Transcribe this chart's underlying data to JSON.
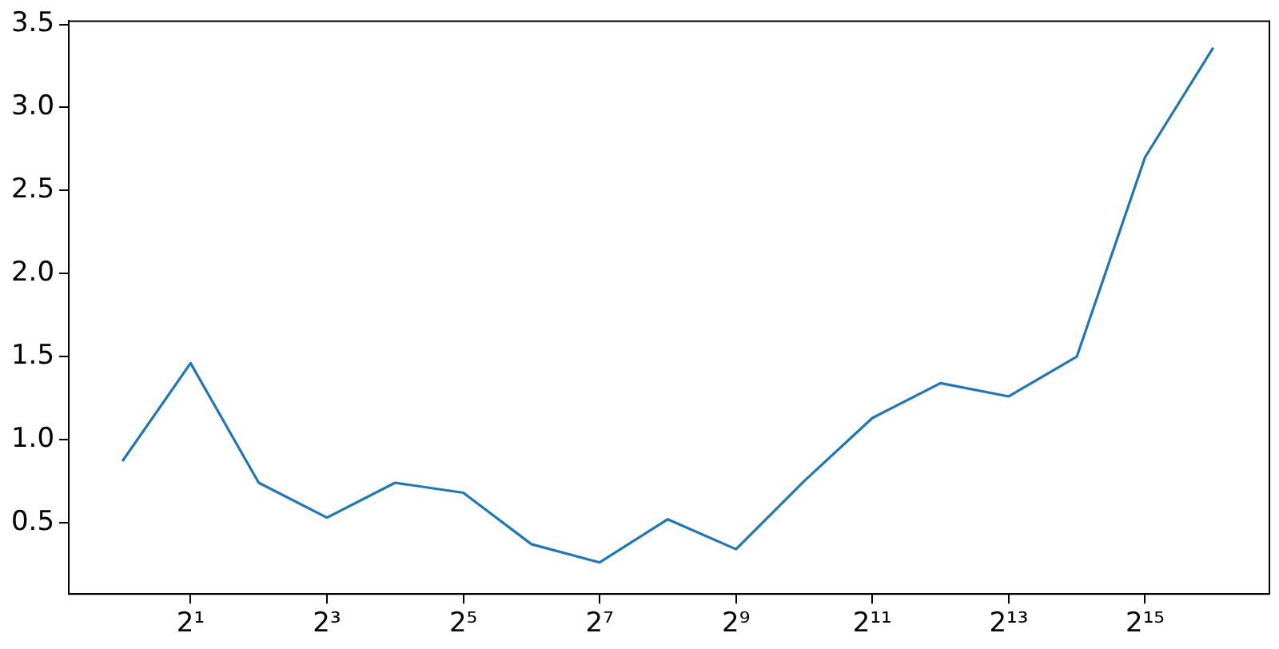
{
  "chart_data": {
    "type": "line",
    "log": "x",
    "x": [
      1,
      2,
      4,
      8,
      16,
      32,
      64,
      128,
      256,
      512,
      1024,
      2048,
      4096,
      8192,
      16384,
      32768,
      65536
    ],
    "series": [
      {
        "color": "#1f77b4",
        "values": [
          0.87,
          1.46,
          0.74,
          0.53,
          0.74,
          0.68,
          0.37,
          0.26,
          0.52,
          0.34,
          0.75,
          1.13,
          1.34,
          1.26,
          1.5,
          2.7,
          3.36
        ]
      }
    ],
    "xlim": [
      0.58,
      116000
    ],
    "xticks": [
      {
        "value": 2,
        "label": "2¹"
      },
      {
        "value": 8,
        "label": "2³"
      },
      {
        "value": 32,
        "label": "2⁵"
      },
      {
        "value": 128,
        "label": "2⁷"
      },
      {
        "value": 512,
        "label": "2⁹"
      },
      {
        "value": 2048,
        "label": "2¹¹"
      },
      {
        "value": 8192,
        "label": "2¹³"
      },
      {
        "value": 32768,
        "label": "2¹⁵"
      }
    ],
    "ylim": [
      0.07,
      3.52
    ],
    "yticks": [
      {
        "value": 0.5,
        "label": "0.5"
      },
      {
        "value": 1,
        "label": "1.0"
      },
      {
        "value": 1.5,
        "label": "1.5"
      },
      {
        "value": 2,
        "label": "2.0"
      },
      {
        "value": 2.5,
        "label": "2.5"
      },
      {
        "value": 3,
        "label": "3.0"
      },
      {
        "value": 3.5,
        "label": "3.5"
      }
    ],
    "grid": false,
    "legend": false,
    "marker": "none",
    "line_style": "solid"
  }
}
